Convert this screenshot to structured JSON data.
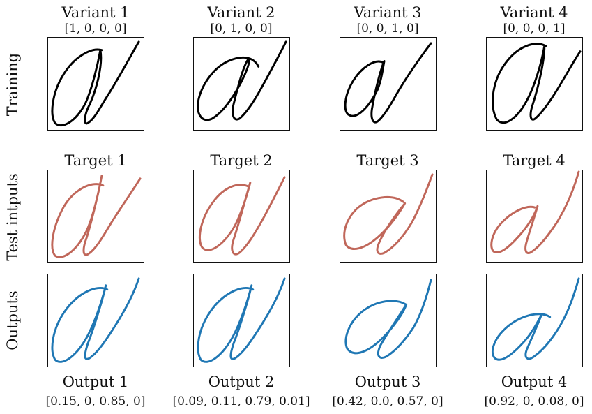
{
  "row_labels": {
    "training": "Training",
    "test_inputs": "Test intputs",
    "outputs": "Outputs"
  },
  "colors": {
    "training": "#000000",
    "test": "#c0675a",
    "output": "#1f77b4"
  },
  "training": [
    {
      "title": "Variant 1",
      "vector": "[1, 0, 0, 0]"
    },
    {
      "title": "Variant 2",
      "vector": "[0, 1, 0, 0]"
    },
    {
      "title": "Variant 3",
      "vector": "[0, 0, 1, 0]"
    },
    {
      "title": "Variant 4",
      "vector": "[0, 0, 0, 1]"
    }
  ],
  "targets": [
    {
      "title": "Target 1"
    },
    {
      "title": "Target 2"
    },
    {
      "title": "Target 3"
    },
    {
      "title": "Target 4"
    }
  ],
  "outputs": [
    {
      "title": "Output 1",
      "vector": "[0.15, 0, 0.85, 0]"
    },
    {
      "title": "Output 2",
      "vector": "[0.09, 0.11, 0.79, 0.01]"
    },
    {
      "title": "Output 3",
      "vector": "[0.42, 0.0, 0.57, 0]"
    },
    {
      "title": "Output 4",
      "vector": "[0.92, 0, 0.08, 0]"
    }
  ]
}
